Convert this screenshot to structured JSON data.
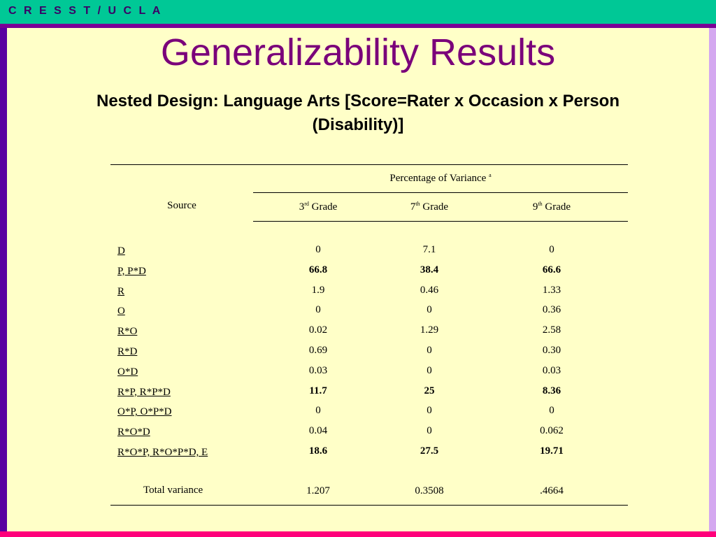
{
  "header": {
    "org_label": "C R E S S T / U C L A"
  },
  "slide": {
    "title": "Generalizability Results",
    "subtitle_line1": "Nested Design:  Language Arts [Score=Rater x Occasion x Person",
    "subtitle_line2": "(Disability)]"
  },
  "table": {
    "source_header": "Source",
    "variance_header": "Percentage of Variance",
    "variance_footnote": "a",
    "grades": [
      {
        "num": "3",
        "sup": "rd",
        "label": "Grade"
      },
      {
        "num": "7",
        "sup": "th",
        "label": "Grade"
      },
      {
        "num": "9",
        "sup": "th",
        "label": "Grade"
      }
    ],
    "rows": [
      {
        "source": "D",
        "values": [
          "0",
          "7.1",
          "0"
        ],
        "bold": false
      },
      {
        "source": "P, P*D",
        "values": [
          "66.8",
          "38.4",
          "66.6"
        ],
        "bold": true
      },
      {
        "source": "R",
        "values": [
          "1.9",
          "0.46",
          "1.33"
        ],
        "bold": false
      },
      {
        "source": "O",
        "values": [
          "0",
          "0",
          "0.36"
        ],
        "bold": false
      },
      {
        "source": "R*O",
        "values": [
          "0.02",
          "1.29",
          "2.58"
        ],
        "bold": false
      },
      {
        "source": "R*D",
        "values": [
          "0.69",
          "0",
          "0.30"
        ],
        "bold": false
      },
      {
        "source": "O*D",
        "values": [
          "0.03",
          "0",
          "0.03"
        ],
        "bold": false
      },
      {
        "source": "R*P, R*P*D",
        "values": [
          "11.7",
          "25",
          "8.36"
        ],
        "bold": true
      },
      {
        "source": "O*P, O*P*D",
        "values": [
          "0",
          "0",
          "0"
        ],
        "bold": false
      },
      {
        "source": "R*O*D",
        "values": [
          "0.04",
          "0",
          "0.062"
        ],
        "bold": false
      },
      {
        "source": "R*O*P, R*O*P*D, E",
        "values": [
          "18.6",
          "27.5",
          "19.71"
        ],
        "bold": true
      }
    ],
    "total": {
      "label": "Total variance",
      "values": [
        "1.207",
        "0.3508",
        ".4664"
      ]
    }
  }
}
